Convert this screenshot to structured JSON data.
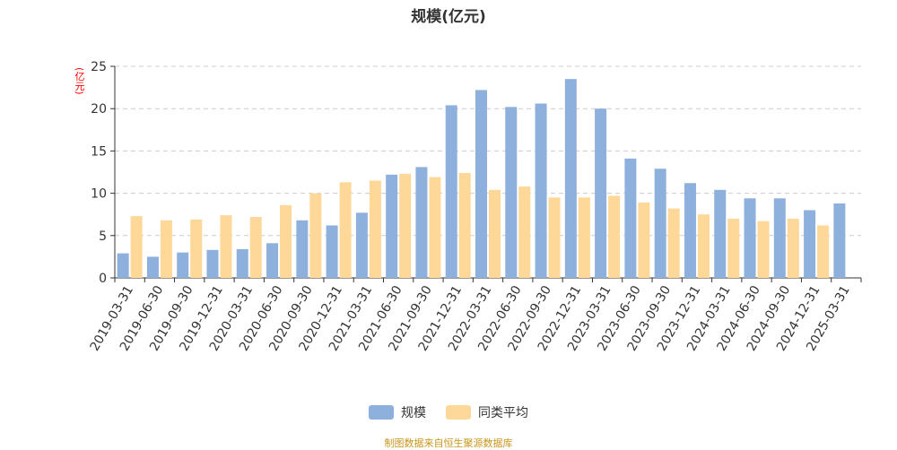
{
  "chart_data": {
    "type": "bar",
    "title": "规模(亿元)",
    "ylabel": "(亿元)",
    "xlabel": "",
    "ylim": [
      0,
      25
    ],
    "yticks": [
      0,
      5,
      10,
      15,
      20,
      25
    ],
    "grid": true,
    "legend_position": "bottom",
    "categories": [
      "2019-03-31",
      "2019-06-30",
      "2019-09-30",
      "2019-12-31",
      "2020-03-31",
      "2020-06-30",
      "2020-09-30",
      "2020-12-31",
      "2021-03-31",
      "2021-06-30",
      "2021-09-30",
      "2021-12-31",
      "2022-03-31",
      "2022-06-30",
      "2022-09-30",
      "2022-12-31",
      "2023-03-31",
      "2023-06-30",
      "2023-09-30",
      "2023-12-31",
      "2024-03-31",
      "2024-06-30",
      "2024-09-30",
      "2024-12-31",
      "2025-03-31"
    ],
    "series": [
      {
        "name": "规模",
        "color": "#8eb0dc",
        "values": [
          2.9,
          2.5,
          3.0,
          3.3,
          3.4,
          4.1,
          6.8,
          6.2,
          7.7,
          12.2,
          13.1,
          20.4,
          22.2,
          20.2,
          20.6,
          23.5,
          20.0,
          14.1,
          12.9,
          11.2,
          10.4,
          9.4,
          9.4,
          8.0,
          8.8
        ]
      },
      {
        "name": "同类平均",
        "color": "#fdd899",
        "values": [
          7.3,
          6.8,
          6.9,
          7.4,
          7.2,
          8.6,
          10.0,
          11.3,
          11.5,
          12.3,
          11.9,
          12.4,
          10.4,
          10.8,
          9.5,
          9.5,
          9.7,
          8.9,
          8.2,
          7.5,
          7.0,
          6.7,
          7.0,
          6.2,
          null
        ]
      }
    ]
  },
  "source": "制图数据来自恒生聚源数据库"
}
